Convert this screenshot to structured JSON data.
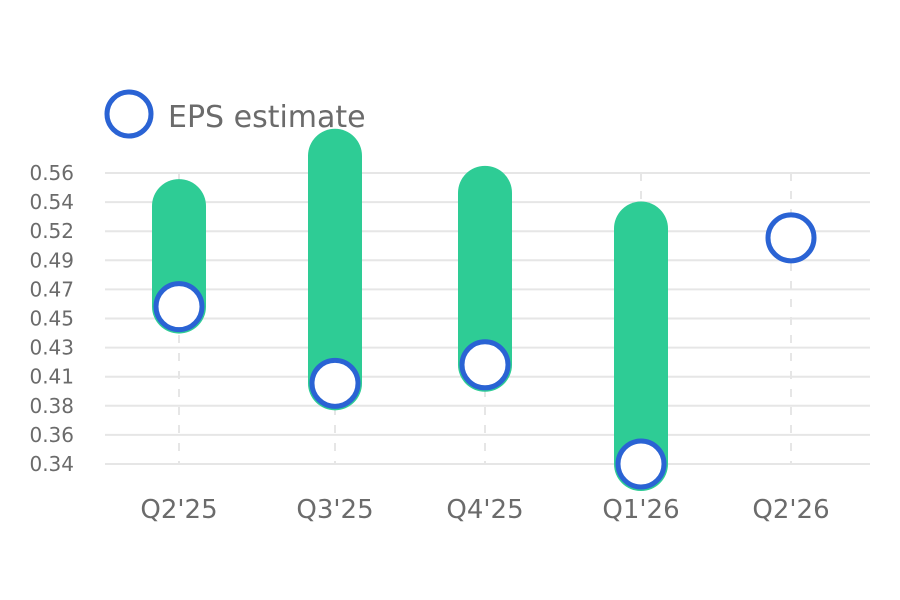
{
  "chart_data": {
    "type": "range-bar with markers",
    "legend": [
      {
        "label": "EPS estimate",
        "marker": "circle-outline",
        "color": "#2a63d4"
      }
    ],
    "y_ticks": [
      "0.56",
      "0.54",
      "0.52",
      "0.49",
      "0.47",
      "0.45",
      "0.43",
      "0.41",
      "0.38",
      "0.36",
      "0.34"
    ],
    "ylim": [
      0.34,
      0.56
    ],
    "categories": [
      "Q2'25",
      "Q3'25",
      "Q4'25",
      "Q1'26",
      "Q2'26"
    ],
    "series": [
      {
        "name": "EPS estimate",
        "values": [
          0.459,
          0.401,
          0.415,
          0.34,
          0.511
        ]
      }
    ],
    "range_top": [
      0.535,
      0.573,
      0.545,
      0.518,
      null
    ],
    "colors": {
      "range": "#2ecc95",
      "marker": "#2a63d4",
      "grid": "#e6e6e6",
      "text": "#6b6b6b"
    },
    "grid": true,
    "legend_position": "top-left"
  }
}
